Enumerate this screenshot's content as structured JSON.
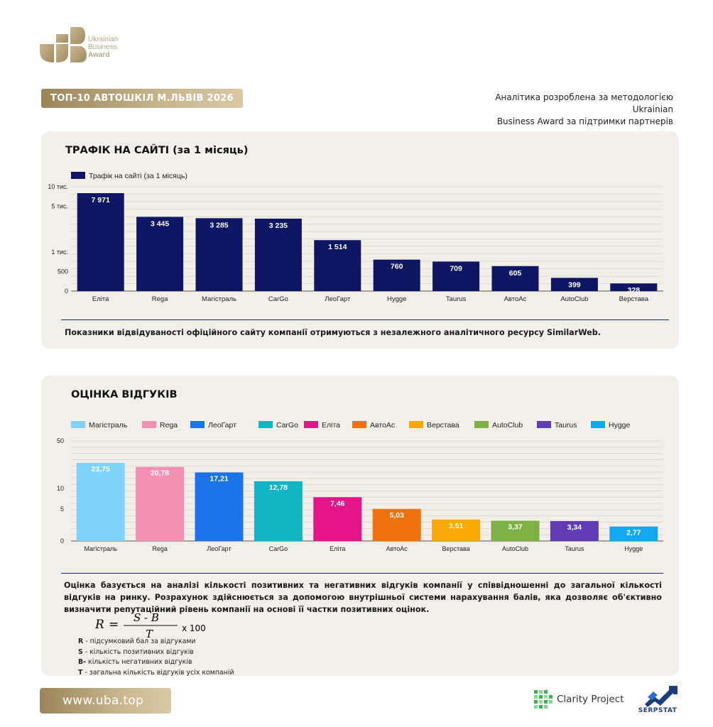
{
  "brand": {
    "logo_lines": [
      "Ukrainian",
      "Business",
      "Award"
    ],
    "gold": "#b9a57f"
  },
  "header": {
    "title": "ТОП-10 АВТОШКІЛ М.ЛЬВІВ 2026",
    "methodology_line1": "Аналітика розроблена за методологією Ukrainian",
    "methodology_line2": "Business Award за підтримки партнерів"
  },
  "traffic": {
    "heading": "ТРАФІК НА САЙТІ (за 1 місяць)",
    "note": "Показники відвідуваності офіційного сайту компанії отримуються з незалежного аналітичного ресурсу SimilarWeb."
  },
  "reviews": {
    "heading": "ОЦІНКА ВІДГУКІВ",
    "description": "Оцінка базується на аналізі кількості позитивних та негативних відгуків компанії у співвідношенні до загальної кількості відгуків на ринку. Розрахунок здійснюється за допомогою внутрішньої системи нарахування балів, яка дозволяє об'єктивно визначити репутаційний рівень компанії на основі її частки позитивних оцінок.",
    "formula": {
      "lhs": "R",
      "eq": "=",
      "numerator": "S - B",
      "denominator": "T",
      "multiplier": "x 100"
    },
    "legend": [
      {
        "key": "R",
        "text": " - підсумковий бал за відгуками"
      },
      {
        "key": "S",
        "text": " - кількість позитивних відгуків"
      },
      {
        "key": "B-",
        "text": "  кількість негативних відгуків"
      },
      {
        "key": "T",
        "text": " - загальна кількість відгуків усіх компаній"
      }
    ]
  },
  "footer": {
    "url": "www.uba.top",
    "partner1": "Clarity Project",
    "partner2": "SERPSTAT"
  },
  "chart_data": [
    {
      "type": "bar",
      "title": "",
      "legend": [
        "Трафік на сайті (за 1 місяць)"
      ],
      "categories": [
        "Еліта",
        "Rega",
        "Магістраль",
        "CarGo",
        "ЛеоГарт",
        "Hygge",
        "Taurus",
        "АвтоАс",
        "AutoClub",
        "Верстава"
      ],
      "series": [
        {
          "name": "Трафік на сайті (за 1 місяць)",
          "values": [
            7971,
            3445,
            3285,
            3235,
            1514,
            760,
            709,
            605,
            399,
            328
          ]
        }
      ],
      "value_labels": [
        "7 971",
        "3 445",
        "3 285",
        "3 235",
        "1 514",
        "760",
        "709",
        "605",
        "399",
        "328"
      ],
      "y_scale": "log",
      "y_ticks": [
        {
          "label": "10 тис.",
          "value": 10000
        },
        {
          "label": "5 тис.",
          "value": 5000
        },
        {
          "label": "1 тис.",
          "value": 1000
        },
        {
          "label": "500",
          "value": 500
        },
        {
          "label": "0",
          "value": 0
        }
      ],
      "color": "#0f1764",
      "grid": true
    },
    {
      "type": "bar",
      "title": "",
      "categories": [
        "Магістраль",
        "Rega",
        "ЛеоГарт",
        "CarGo",
        "Еліта",
        "АвтоАс",
        "Верстава",
        "AutoClub",
        "Taurus",
        "Hygge"
      ],
      "values": [
        23.75,
        20.78,
        17.21,
        12.78,
        7.46,
        5.03,
        3.51,
        3.37,
        3.34,
        2.77
      ],
      "value_labels": [
        "23,75",
        "20,78",
        "17,21",
        "12,78",
        "7,46",
        "5,03",
        "3,51",
        "3,37",
        "3,34",
        "2,77"
      ],
      "colors": [
        "#7fd3f8",
        "#f391b4",
        "#1a73e8",
        "#12b5c4",
        "#e5148a",
        "#f2710d",
        "#f9a806",
        "#7cb244",
        "#5f3bb4",
        "#12a8f0"
      ],
      "legend": [
        "Магістраль",
        "Rega",
        "ЛеоГарт",
        "CarGo",
        "Еліта",
        "АвтоАс",
        "Верстава",
        "AutoClub",
        "Taurus",
        "Hygge"
      ],
      "y_scale": "log",
      "y_ticks": [
        {
          "label": "50",
          "value": 50
        },
        {
          "label": "10",
          "value": 10
        },
        {
          "label": "5",
          "value": 5
        },
        {
          "label": "0",
          "value": 0
        }
      ],
      "grid": true
    }
  ]
}
